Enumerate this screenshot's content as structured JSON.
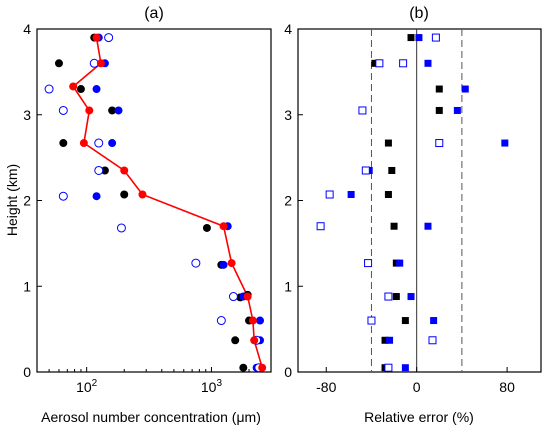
{
  "chart_data": [
    {
      "type": "scatter",
      "title": "(a)",
      "xlabel": "Aerosol number concentration (μm)",
      "ylabel": "Height (km)",
      "xscale": "log",
      "xlim": [
        40,
        3000
      ],
      "ylim": [
        0,
        4
      ],
      "xticks": [
        {
          "value": 100,
          "base": "10",
          "exp": "2"
        },
        {
          "value": 1000,
          "base": "10",
          "exp": "3"
        }
      ],
      "yticks": [
        0,
        1,
        2,
        3,
        4
      ],
      "series": [
        {
          "marker": "filled-circle",
          "color": "#000000",
          "points": [
            [
              1800,
              0.05
            ],
            [
              1550,
              0.37
            ],
            [
              2000,
              0.6
            ],
            [
              1950,
              0.9
            ],
            [
              1700,
              0.87
            ],
            [
              1200,
              1.25
            ],
            [
              920,
              1.68
            ],
            [
              200,
              2.07
            ],
            [
              140,
              2.35
            ],
            [
              65,
              2.67
            ],
            [
              160,
              3.05
            ],
            [
              90,
              3.3
            ],
            [
              60,
              3.6
            ],
            [
              115,
              3.9
            ]
          ]
        },
        {
          "marker": "filled-circle",
          "color": "#0000ff",
          "points": [
            [
              2300,
              0.05
            ],
            [
              2450,
              0.37
            ],
            [
              2450,
              0.6
            ],
            [
              1800,
              0.88
            ],
            [
              1250,
              1.25
            ],
            [
              1350,
              1.7
            ],
            [
              120,
              2.05
            ],
            [
              125,
              2.35
            ],
            [
              160,
              2.67
            ],
            [
              180,
              3.05
            ],
            [
              120,
              3.3
            ],
            [
              140,
              3.6
            ],
            [
              125,
              3.9
            ]
          ]
        },
        {
          "marker": "open-circle",
          "color": "#0000ff",
          "points": [
            [
              2400,
              0.05
            ],
            [
              2300,
              0.37
            ],
            [
              1200,
              0.6
            ],
            [
              1500,
              0.88
            ],
            [
              750,
              1.27
            ],
            [
              190,
              1.68
            ],
            [
              65,
              2.05
            ],
            [
              125,
              2.35
            ],
            [
              125,
              2.67
            ],
            [
              65,
              3.05
            ],
            [
              50,
              3.3
            ],
            [
              115,
              3.6
            ],
            [
              150,
              3.9
            ]
          ]
        },
        {
          "marker": "filled-circle-line",
          "color": "#ff0000",
          "points": [
            [
              2550,
              0.05
            ],
            [
              2200,
              0.37
            ],
            [
              2150,
              0.6
            ],
            [
              1950,
              0.88
            ],
            [
              1450,
              1.27
            ],
            [
              1250,
              1.7
            ],
            [
              280,
              2.07
            ],
            [
              200,
              2.35
            ],
            [
              95,
              2.67
            ],
            [
              105,
              3.05
            ],
            [
              78,
              3.33
            ],
            [
              130,
              3.6
            ],
            [
              120,
              3.9
            ]
          ]
        }
      ]
    },
    {
      "type": "scatter",
      "title": "(b)",
      "xlabel": "Relative error (%)",
      "xlim": [
        -105,
        110
      ],
      "ylim": [
        0,
        4
      ],
      "xticks": [
        -80,
        0,
        80
      ],
      "yticks": [
        0,
        1,
        2,
        3,
        4
      ],
      "reference_lines": [
        {
          "x": -40,
          "style": "dashed"
        },
        {
          "x": 0,
          "style": "solid"
        },
        {
          "x": 40,
          "style": "dashed"
        }
      ],
      "series": [
        {
          "marker": "filled-square",
          "color": "#000000",
          "points": [
            [
              -28,
              0.05
            ],
            [
              -28,
              0.37
            ],
            [
              -10,
              0.6
            ],
            [
              -18,
              0.88
            ],
            [
              -18,
              1.27
            ],
            [
              -20,
              1.7
            ],
            [
              -25,
              2.07
            ],
            [
              -22,
              2.35
            ],
            [
              -25,
              2.67
            ],
            [
              20,
              3.05
            ],
            [
              20,
              3.3
            ],
            [
              -37,
              3.6
            ],
            [
              -5,
              3.9
            ]
          ]
        },
        {
          "marker": "filled-square",
          "color": "#0000ff",
          "points": [
            [
              -10,
              0.05
            ],
            [
              -24,
              0.37
            ],
            [
              15,
              0.6
            ],
            [
              -5,
              0.88
            ],
            [
              -15,
              1.27
            ],
            [
              10,
              1.7
            ],
            [
              -58,
              2.07
            ],
            [
              -42,
              2.35
            ],
            [
              78,
              2.67
            ],
            [
              36,
              3.05
            ],
            [
              43,
              3.3
            ],
            [
              10,
              3.6
            ],
            [
              2,
              3.9
            ]
          ]
        },
        {
          "marker": "open-square",
          "color": "#0000ff",
          "points": [
            [
              -25,
              0.05
            ],
            [
              14,
              0.37
            ],
            [
              -40,
              0.6
            ],
            [
              -25,
              0.88
            ],
            [
              -43,
              1.27
            ],
            [
              -85,
              1.7
            ],
            [
              -77,
              2.07
            ],
            [
              -45,
              2.35
            ],
            [
              20,
              2.67
            ],
            [
              -48,
              3.05
            ],
            [
              -33,
              3.6
            ],
            [
              -12,
              3.6
            ],
            [
              17,
              3.9
            ]
          ]
        }
      ]
    }
  ]
}
